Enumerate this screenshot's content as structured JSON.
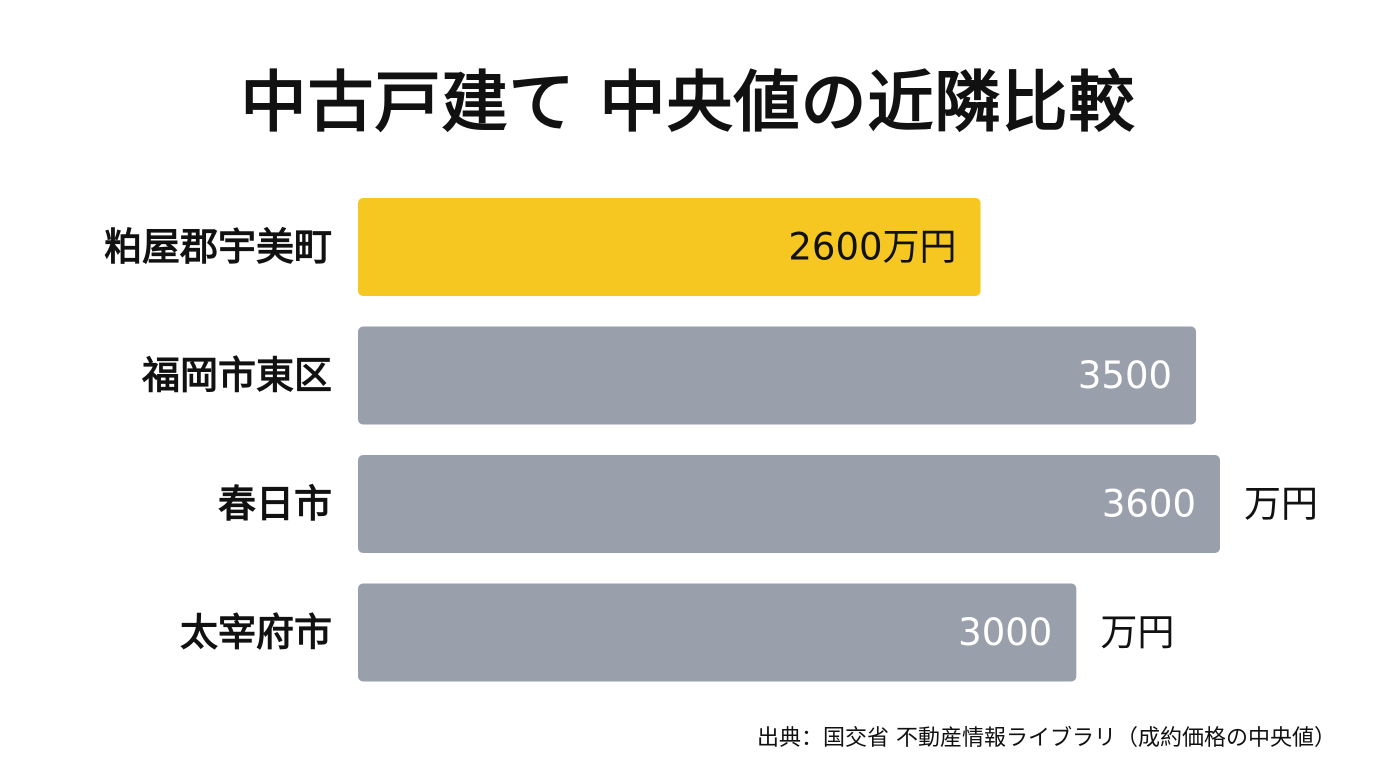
{
  "chart_data": {
    "type": "bar",
    "orientation": "horizontal",
    "title": "中古戸建て 中央値の近隣比較",
    "categories": [
      "粕屋郡宇美町",
      "福岡市東区",
      "春日市",
      "太宰府市"
    ],
    "values": [
      2600,
      3500,
      3600,
      3000
    ],
    "value_labels": [
      "2600万円",
      "3500",
      "3600",
      "3000"
    ],
    "unit_labels": [
      "",
      "",
      "万円",
      "万円"
    ],
    "highlight_index": 0,
    "xlim": [
      0,
      3600
    ],
    "grid": false,
    "legend": "none"
  },
  "colors": {
    "highlight": "#f5c720",
    "bar": "#9aa0ab",
    "highlight_text": "#111111",
    "bar_text": "#ffffff"
  },
  "footer": {
    "source": "出典：国交省 不動産情報ライブラリ（成約価格の中央値）"
  }
}
